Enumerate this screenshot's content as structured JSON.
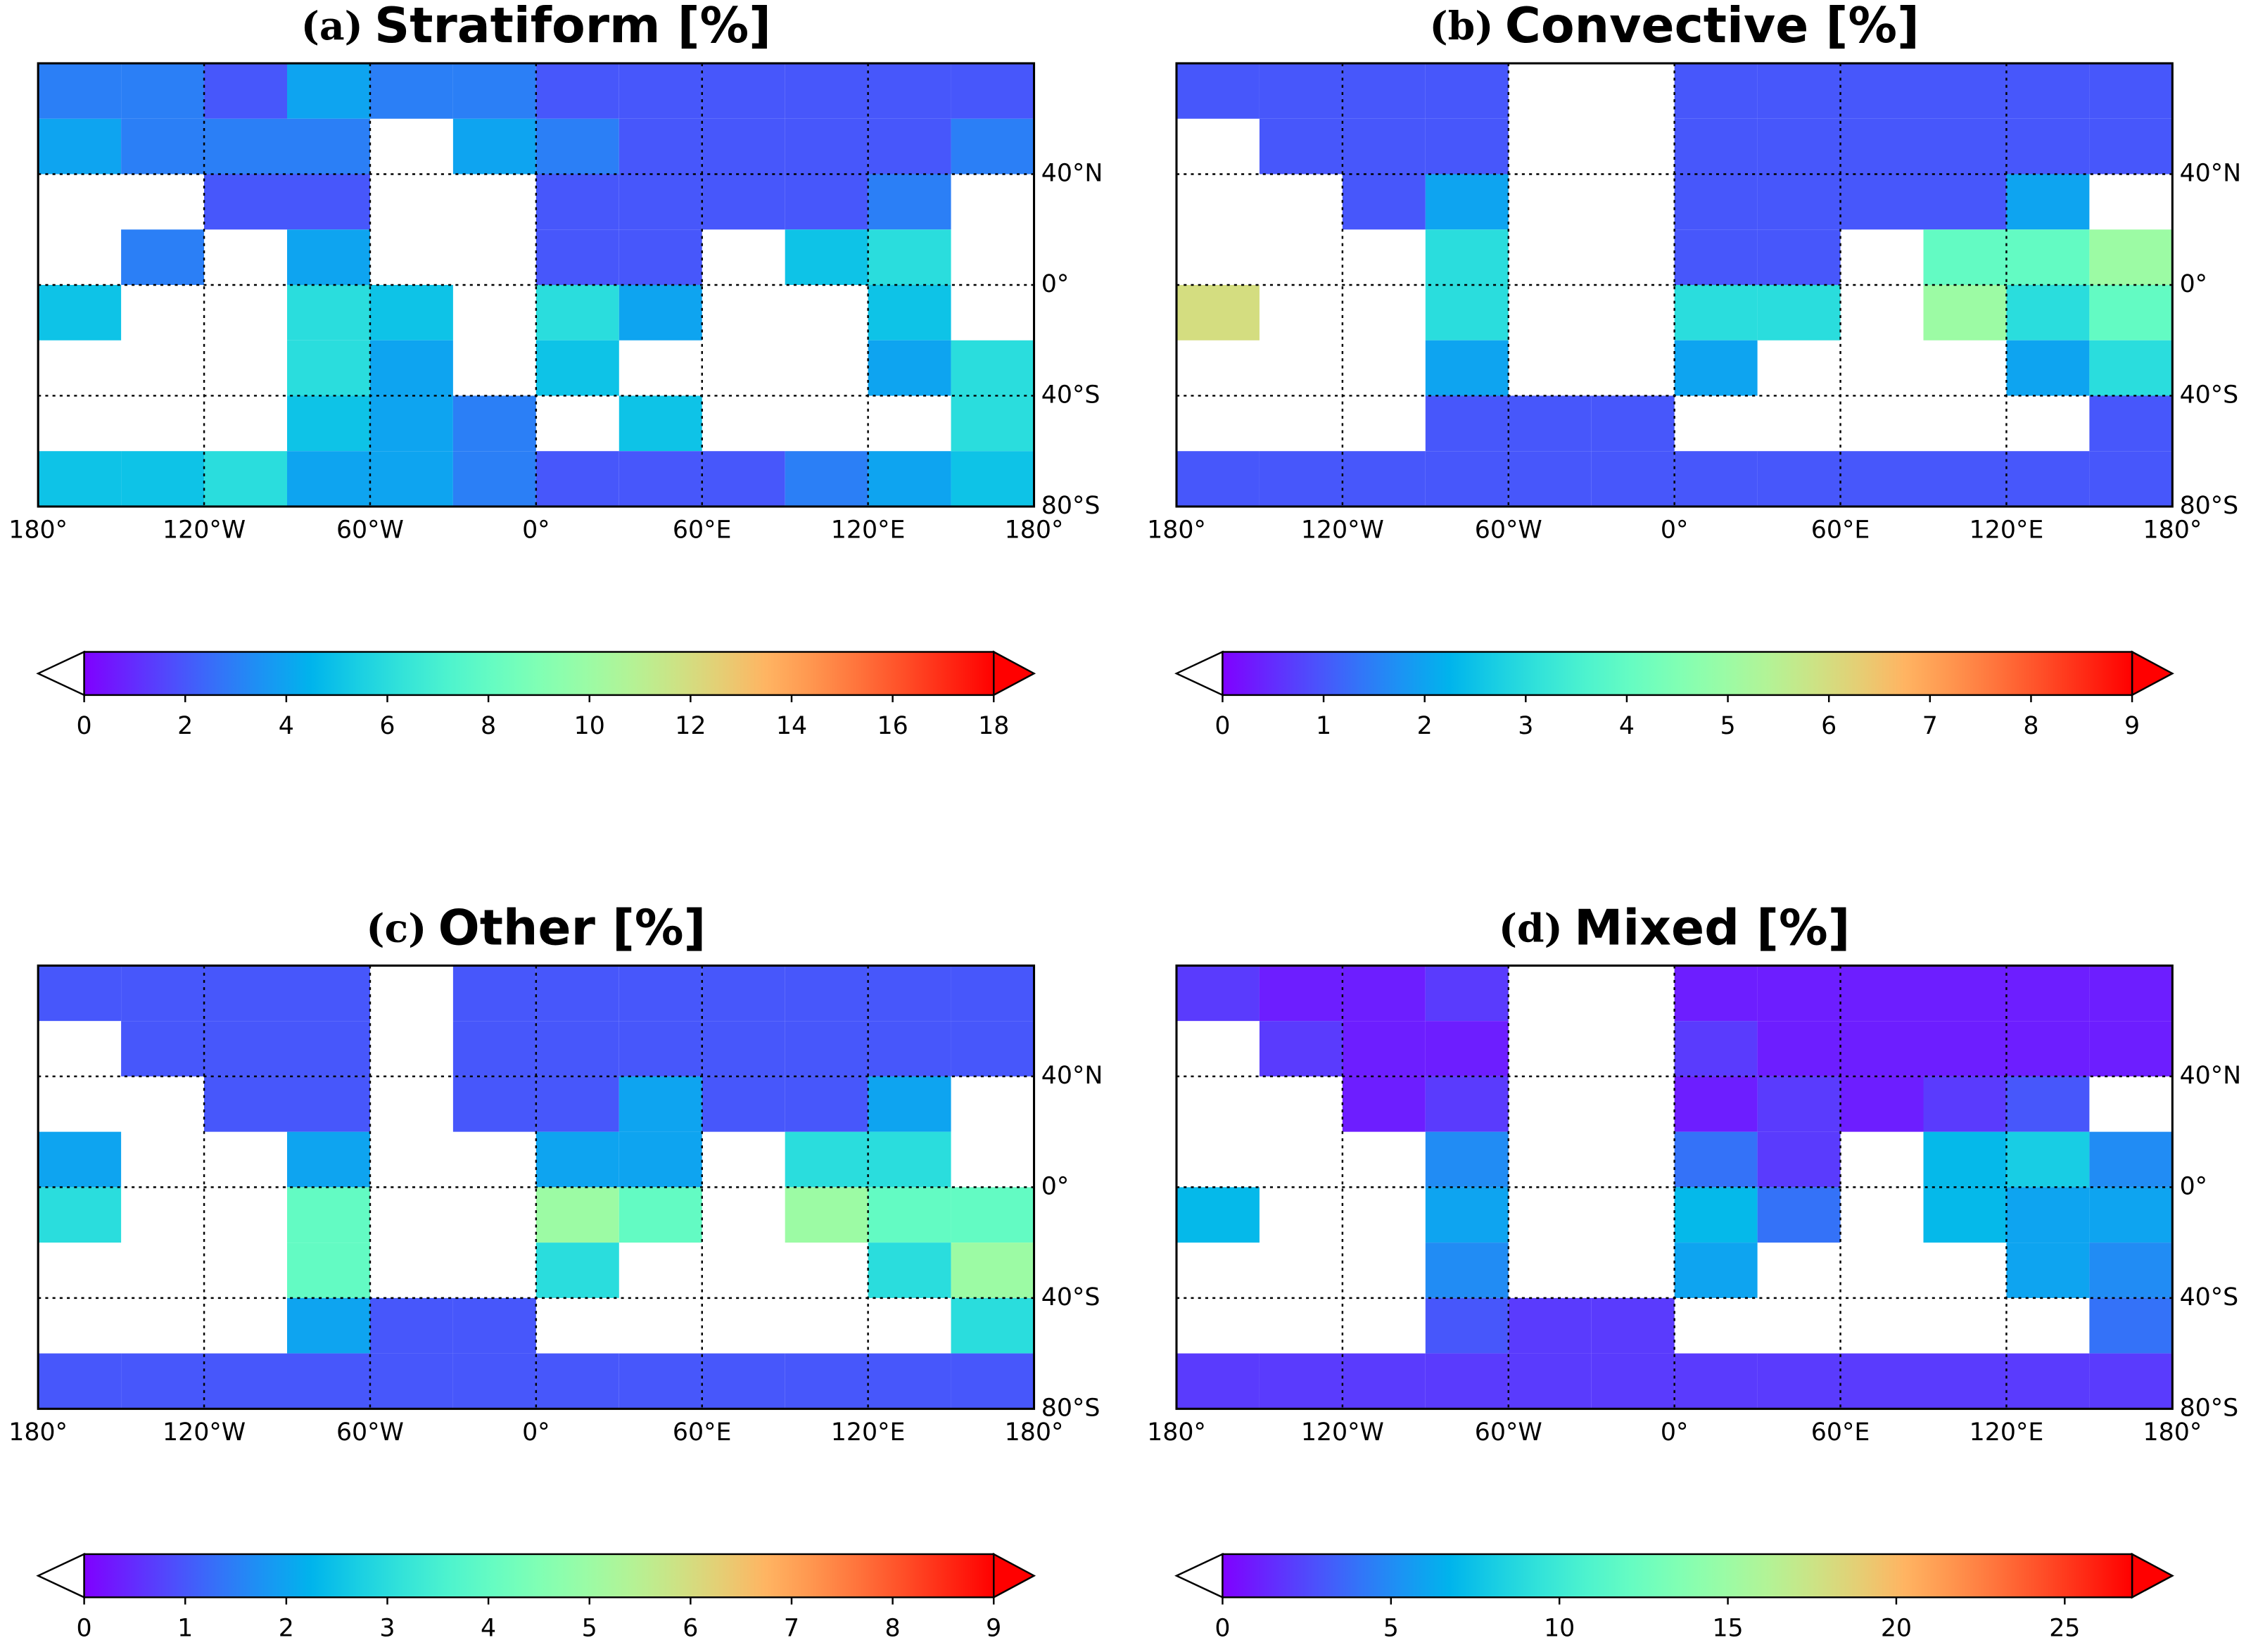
{
  "chart_data": [
    {
      "type": "heatmap",
      "label": "(a)",
      "title": "Stratiform [%]",
      "colormap": "rainbow",
      "extend": "both",
      "xlim": [
        -180,
        180
      ],
      "ylim": [
        -80,
        80
      ],
      "xticks": [
        {
          "value": -180,
          "label": "180°"
        },
        {
          "value": -120,
          "label": "120°W"
        },
        {
          "value": -60,
          "label": "60°W"
        },
        {
          "value": 0,
          "label": "0°"
        },
        {
          "value": 60,
          "label": "60°E"
        },
        {
          "value": 120,
          "label": "120°E"
        },
        {
          "value": 180,
          "label": "180°"
        }
      ],
      "yticks": [
        {
          "value": 40,
          "label": "40°N"
        },
        {
          "value": 0,
          "label": "0°"
        },
        {
          "value": -40,
          "label": "40°S"
        },
        {
          "value": -80,
          "label": "80°S"
        }
      ],
      "x_edges": [
        -180,
        -150,
        -120,
        -90,
        -60,
        -30,
        0,
        30,
        60,
        90,
        120,
        150,
        180
      ],
      "y_edges": [
        80,
        60,
        40,
        20,
        0,
        -20,
        -40,
        -60,
        -80
      ],
      "values": [
        [
          3,
          3,
          2,
          4,
          3,
          3,
          2,
          2,
          2,
          2,
          2,
          2
        ],
        [
          4,
          3,
          3,
          3,
          null,
          4,
          3,
          2,
          2,
          2,
          2,
          3
        ],
        [
          null,
          null,
          2,
          2,
          null,
          null,
          2,
          2,
          2,
          2,
          3,
          null
        ],
        [
          null,
          3,
          null,
          4,
          null,
          null,
          2,
          2,
          null,
          5,
          6,
          null
        ],
        [
          5,
          null,
          null,
          6,
          5,
          null,
          6,
          4,
          null,
          null,
          5,
          null
        ],
        [
          null,
          null,
          null,
          6,
          4,
          null,
          5,
          null,
          null,
          null,
          4,
          6
        ],
        [
          null,
          null,
          null,
          5,
          4,
          3,
          null,
          5,
          null,
          null,
          null,
          6
        ],
        [
          5,
          5,
          6,
          4,
          4,
          3,
          2,
          2,
          2,
          3,
          4,
          5
        ]
      ],
      "clim": [
        0,
        18
      ],
      "cticks": [
        0,
        2,
        4,
        6,
        8,
        10,
        12,
        14,
        16,
        18
      ]
    },
    {
      "type": "heatmap",
      "label": "(b)",
      "title": "Convective [%]",
      "colormap": "rainbow",
      "extend": "both",
      "xlim": [
        -180,
        180
      ],
      "ylim": [
        -80,
        80
      ],
      "xticks": [
        {
          "value": -180,
          "label": "180°"
        },
        {
          "value": -120,
          "label": "120°W"
        },
        {
          "value": -60,
          "label": "60°W"
        },
        {
          "value": 0,
          "label": "0°"
        },
        {
          "value": 60,
          "label": "60°E"
        },
        {
          "value": 120,
          "label": "120°E"
        },
        {
          "value": 180,
          "label": "180°"
        }
      ],
      "yticks": [
        {
          "value": 40,
          "label": "40°N"
        },
        {
          "value": 0,
          "label": "0°"
        },
        {
          "value": -40,
          "label": "40°S"
        },
        {
          "value": -80,
          "label": "80°S"
        }
      ],
      "x_edges": [
        -180,
        -150,
        -120,
        -90,
        -60,
        -30,
        0,
        30,
        60,
        90,
        120,
        150,
        180
      ],
      "y_edges": [
        80,
        60,
        40,
        20,
        0,
        -20,
        -40,
        -60,
        -80
      ],
      "values": [
        [
          1,
          1,
          1,
          1,
          null,
          null,
          1,
          1,
          1,
          1,
          1,
          1
        ],
        [
          null,
          1,
          1,
          1,
          null,
          null,
          1,
          1,
          1,
          1,
          1,
          1
        ],
        [
          null,
          null,
          1,
          2,
          null,
          null,
          1,
          1,
          1,
          1,
          2,
          null
        ],
        [
          null,
          null,
          null,
          3,
          null,
          null,
          1,
          1,
          null,
          4,
          4,
          5
        ],
        [
          6,
          null,
          null,
          3,
          null,
          null,
          3,
          3,
          null,
          5,
          3,
          4
        ],
        [
          null,
          null,
          null,
          2,
          null,
          null,
          2,
          null,
          null,
          null,
          2,
          3
        ],
        [
          null,
          null,
          null,
          1,
          1,
          1,
          null,
          null,
          null,
          null,
          null,
          1
        ],
        [
          1,
          1,
          1,
          1,
          1,
          1,
          1,
          1,
          1,
          1,
          1,
          1
        ]
      ],
      "clim": [
        0,
        9
      ],
      "cticks": [
        0,
        1,
        2,
        3,
        4,
        5,
        6,
        7,
        8,
        9
      ]
    },
    {
      "type": "heatmap",
      "label": "(c)",
      "title": "Other [%]",
      "colormap": "rainbow",
      "extend": "both",
      "xlim": [
        -180,
        180
      ],
      "ylim": [
        -80,
        80
      ],
      "xticks": [
        {
          "value": -180,
          "label": "180°"
        },
        {
          "value": -120,
          "label": "120°W"
        },
        {
          "value": -60,
          "label": "60°W"
        },
        {
          "value": 0,
          "label": "0°"
        },
        {
          "value": 60,
          "label": "60°E"
        },
        {
          "value": 120,
          "label": "120°E"
        },
        {
          "value": 180,
          "label": "180°"
        }
      ],
      "yticks": [
        {
          "value": 40,
          "label": "40°N"
        },
        {
          "value": 0,
          "label": "0°"
        },
        {
          "value": -40,
          "label": "40°S"
        },
        {
          "value": -80,
          "label": "80°S"
        }
      ],
      "x_edges": [
        -180,
        -150,
        -120,
        -90,
        -60,
        -30,
        0,
        30,
        60,
        90,
        120,
        150,
        180
      ],
      "y_edges": [
        80,
        60,
        40,
        20,
        0,
        -20,
        -40,
        -60,
        -80
      ],
      "values": [
        [
          1,
          1,
          1,
          1,
          null,
          1,
          1,
          1,
          1,
          1,
          1,
          1
        ],
        [
          null,
          1,
          1,
          1,
          null,
          1,
          1,
          1,
          1,
          1,
          1,
          1
        ],
        [
          null,
          null,
          1,
          1,
          null,
          1,
          1,
          2,
          1,
          1,
          2,
          null
        ],
        [
          2,
          null,
          null,
          2,
          null,
          null,
          2,
          2,
          null,
          3,
          3,
          null
        ],
        [
          3,
          null,
          null,
          4,
          null,
          null,
          5,
          4,
          null,
          5,
          4,
          4
        ],
        [
          null,
          null,
          null,
          4,
          null,
          null,
          3,
          null,
          null,
          null,
          3,
          5
        ],
        [
          null,
          null,
          null,
          2,
          1,
          1,
          null,
          null,
          null,
          null,
          null,
          3
        ],
        [
          1,
          1,
          1,
          1,
          1,
          1,
          1,
          1,
          1,
          1,
          1,
          1
        ]
      ],
      "clim": [
        0,
        9
      ],
      "cticks": [
        0,
        1,
        2,
        3,
        4,
        5,
        6,
        7,
        8,
        9
      ]
    },
    {
      "type": "heatmap",
      "label": "(d)",
      "title": "Mixed [%]",
      "colormap": "rainbow",
      "extend": "both",
      "xlim": [
        -180,
        180
      ],
      "ylim": [
        -80,
        80
      ],
      "xticks": [
        {
          "value": -180,
          "label": "180°"
        },
        {
          "value": -120,
          "label": "120°W"
        },
        {
          "value": -60,
          "label": "60°W"
        },
        {
          "value": 0,
          "label": "0°"
        },
        {
          "value": 60,
          "label": "60°E"
        },
        {
          "value": 120,
          "label": "120°E"
        },
        {
          "value": 180,
          "label": "180°"
        }
      ],
      "yticks": [
        {
          "value": 40,
          "label": "40°N"
        },
        {
          "value": 0,
          "label": "0°"
        },
        {
          "value": -40,
          "label": "40°S"
        },
        {
          "value": -80,
          "label": "80°S"
        }
      ],
      "x_edges": [
        -180,
        -150,
        -120,
        -90,
        -60,
        -30,
        0,
        30,
        60,
        90,
        120,
        150,
        180
      ],
      "y_edges": [
        80,
        60,
        40,
        20,
        0,
        -20,
        -40,
        -60,
        -80
      ],
      "values": [
        [
          2,
          1,
          1,
          2,
          null,
          null,
          1,
          1,
          1,
          1,
          1,
          1
        ],
        [
          null,
          2,
          1,
          1,
          null,
          null,
          2,
          1,
          1,
          1,
          1,
          1
        ],
        [
          null,
          null,
          1,
          2,
          null,
          null,
          1,
          2,
          1,
          2,
          3,
          null
        ],
        [
          null,
          null,
          null,
          5,
          null,
          null,
          4,
          2,
          null,
          7,
          8,
          5
        ],
        [
          7,
          null,
          null,
          6,
          null,
          null,
          7,
          4,
          null,
          7,
          6,
          6
        ],
        [
          null,
          null,
          null,
          5,
          null,
          null,
          6,
          null,
          null,
          null,
          6,
          5
        ],
        [
          null,
          null,
          null,
          3,
          2,
          2,
          null,
          null,
          null,
          null,
          null,
          4
        ],
        [
          2,
          2,
          2,
          2,
          2,
          2,
          2,
          2,
          2,
          2,
          2,
          2
        ]
      ],
      "clim": [
        0,
        27
      ],
      "cticks": [
        0,
        5,
        10,
        15,
        20,
        25
      ]
    }
  ]
}
